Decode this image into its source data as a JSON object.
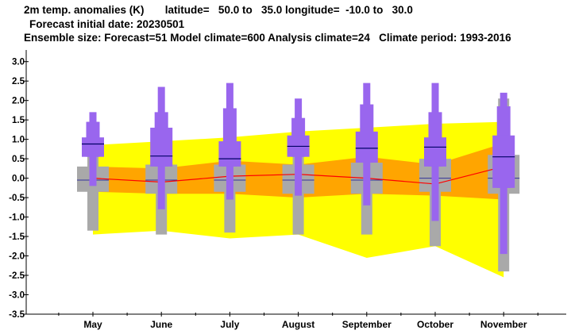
{
  "header": {
    "line1": "2m temp. anomalies (K)       latitude=   50.0 to   35.0 longitude=  -10.0 to   30.0",
    "line2": "Forecast initial date: 20230501",
    "line3": "Ensemble size: Forecast=51 Model climate=600 Analysis climate=24   Climate period: 1993-2016"
  },
  "chart_data": {
    "type": "box",
    "title": "2m temp. anomalies (K)",
    "categories": [
      "May",
      "June",
      "July",
      "August",
      "September",
      "October",
      "November"
    ],
    "ylim": [
      -3.5,
      3.3
    ],
    "yticks": [
      3.0,
      2.5,
      2.0,
      1.5,
      1.0,
      0.5,
      0.0,
      -0.5,
      -1.0,
      -1.5,
      -2.0,
      -2.5,
      -3.0,
      -3.5
    ],
    "ytick_labels": [
      "3.0",
      "2.5",
      "2.0",
      "1.5",
      "1.0",
      "0.5",
      "0.0",
      "-0.5",
      "-1.0",
      "-1.5",
      "-2.0",
      "-2.5",
      "-3.0",
      "-3.5"
    ],
    "analysis_climate_envelope": {
      "color": "#ffff00",
      "upper": [
        0.85,
        0.95,
        1.05,
        1.2,
        1.3,
        1.4,
        1.45
      ],
      "lower": [
        -1.45,
        -1.35,
        -1.55,
        -1.45,
        -2.05,
        -1.75,
        -2.55
      ]
    },
    "analysis_climate_band": {
      "color": "#ffa500",
      "upper": [
        0.3,
        0.25,
        0.45,
        0.35,
        0.55,
        0.35,
        0.9
      ],
      "lower": [
        -0.35,
        -0.4,
        -0.4,
        -0.5,
        -0.4,
        -0.45,
        -0.55
      ]
    },
    "analysis_climate_median": {
      "color": "#ff0000",
      "values": [
        0.0,
        -0.1,
        0.05,
        0.1,
        0.0,
        -0.15,
        0.3
      ]
    },
    "model_climate": {
      "color": "#a9a9a9",
      "boxes": [
        {
          "min": -1.35,
          "p10": -0.35,
          "p25": -0.35,
          "median": -0.05,
          "p75": 0.3,
          "p90": 0.3,
          "max": 1.45
        },
        {
          "min": -1.45,
          "p10": -0.4,
          "p25": -0.4,
          "median": -0.05,
          "p75": 0.35,
          "p90": 0.35,
          "max": 1.6
        },
        {
          "min": -1.4,
          "p10": -0.35,
          "p25": -0.35,
          "median": -0.05,
          "p75": 0.35,
          "p90": 0.35,
          "max": 1.55
        },
        {
          "min": -1.45,
          "p10": -0.4,
          "p25": -0.4,
          "median": -0.05,
          "p75": 0.35,
          "p90": 0.35,
          "max": 1.5
        },
        {
          "min": -1.45,
          "p10": -0.4,
          "p25": -0.4,
          "median": -0.05,
          "p75": 0.4,
          "p90": 0.4,
          "max": 1.5
        },
        {
          "min": -1.75,
          "p10": -0.35,
          "p25": -0.35,
          "median": 0.0,
          "p75": 0.5,
          "p90": 0.5,
          "max": 1.6
        },
        {
          "min": -2.4,
          "p10": -0.4,
          "p25": -0.4,
          "median": 0.0,
          "p75": 0.6,
          "p90": 0.6,
          "max": 2.05
        }
      ]
    },
    "forecast": {
      "color": "#9966ee",
      "boxes": [
        {
          "min": -0.2,
          "p10": 0.55,
          "p25": 0.55,
          "median": 0.88,
          "p75": 1.05,
          "p90": 1.45,
          "max": 1.7
        },
        {
          "min": -0.8,
          "p10": 0.3,
          "p25": 0.3,
          "median": 0.57,
          "p75": 1.3,
          "p90": 1.7,
          "max": 2.35
        },
        {
          "min": -0.55,
          "p10": 0.3,
          "p25": 0.3,
          "median": 0.5,
          "p75": 0.95,
          "p90": 1.8,
          "max": 2.45
        },
        {
          "min": -0.45,
          "p10": 0.55,
          "p25": 0.55,
          "median": 0.82,
          "p75": 1.1,
          "p90": 1.55,
          "max": 2.05
        },
        {
          "min": -0.7,
          "p10": 0.4,
          "p25": 0.4,
          "median": 0.77,
          "p75": 1.2,
          "p90": 1.9,
          "max": 2.45
        },
        {
          "min": -1.1,
          "p10": 0.3,
          "p25": 0.3,
          "median": 0.8,
          "p75": 1.05,
          "p90": 1.7,
          "max": 2.45
        },
        {
          "min": -1.95,
          "p10": -0.25,
          "p25": -0.25,
          "median": 0.55,
          "p75": 1.1,
          "p90": 1.85,
          "max": 2.2
        }
      ]
    }
  }
}
